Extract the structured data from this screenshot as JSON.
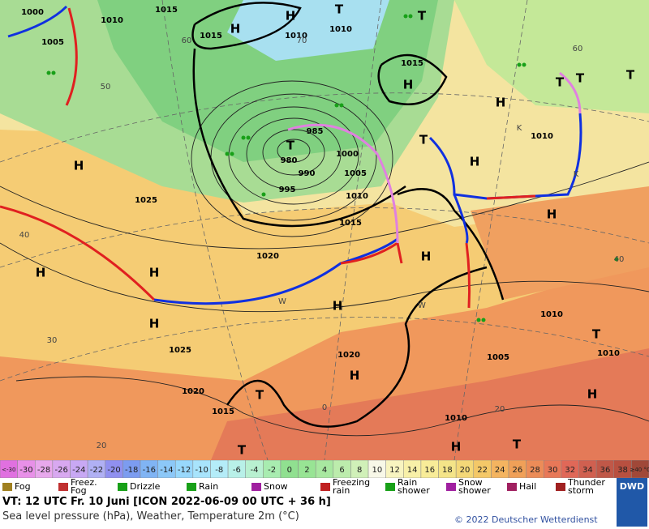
{
  "map": {
    "labels": [
      "1000",
      "1010",
      "1015",
      "1005",
      "1015",
      "1010",
      "1010",
      "1015",
      "985",
      "980",
      "990",
      "995",
      "1000",
      "1005",
      "1010",
      "1015",
      "1025",
      "1020",
      "1025",
      "1020",
      "1015",
      "1020",
      "1010",
      "1005",
      "1010",
      "1010",
      "1010",
      "H",
      "H",
      "T",
      "T",
      "H",
      "T",
      "H",
      "H",
      "H",
      "H",
      "H",
      "H",
      "H",
      "T",
      "H",
      "T",
      "T",
      "H",
      "T",
      "H",
      "T",
      "T",
      "T",
      "H",
      "T",
      "H",
      "60",
      "50",
      "40",
      "30",
      "20",
      "60",
      "40",
      "0",
      "20",
      "70",
      "K",
      "K",
      "W",
      "W"
    ]
  },
  "legend": {
    "temperature": {
      "labels": [
        "<-30",
        "-30",
        "-28",
        "-26",
        "-24",
        "-22",
        "-20",
        "-18",
        "-16",
        "-14",
        "-12",
        "-10",
        "-8",
        "-6",
        "-4",
        "-2",
        "0",
        "2",
        "4",
        "6",
        "8",
        "10",
        "12",
        "14",
        "16",
        "18",
        "20",
        "22",
        "24",
        "26",
        "28",
        "30",
        "32",
        "34",
        "36",
        "38",
        "≥40 °C"
      ],
      "colors": [
        "#e070e0",
        "#e890e8",
        "#e8a8ec",
        "#d8a8f0",
        "#c8a8f4",
        "#b0b0f4",
        "#9090f0",
        "#7c9cf0",
        "#80b4f4",
        "#8cc8f8",
        "#98d8fc",
        "#a8e4fc",
        "#b4ecf8",
        "#b8f0e8",
        "#b8f0d0",
        "#a8ecb0",
        "#90e090",
        "#98e494",
        "#a8e8a0",
        "#bcecac",
        "#d0f0b8",
        "#f8f8e8",
        "#f8f4c0",
        "#f8f0a8",
        "#f8ec98",
        "#f4e488",
        "#f4d878",
        "#f4c868",
        "#f4b460",
        "#f0a058",
        "#ec8c58",
        "#e87858",
        "#e06858",
        "#d06050",
        "#c05848",
        "#b85040",
        "#a04838"
      ]
    },
    "weather": [
      "Fog",
      "Freez. Fog",
      "Drizzle",
      "Rain",
      "Snow",
      "Freezing rain",
      "Rain shower",
      "Snow shower",
      "Hail",
      "Thunder storm"
    ]
  },
  "footer": {
    "valid_time": "VT: 12 UTC Fr.  10 Juni [ICON 2022-06-09  00 UTC + 36 h]",
    "description": "Sea level pressure (hPa), Weather, Temperature 2m (°C)",
    "copyright": "© 2022 Deutscher Wetterdienst",
    "logo": "DWD"
  }
}
